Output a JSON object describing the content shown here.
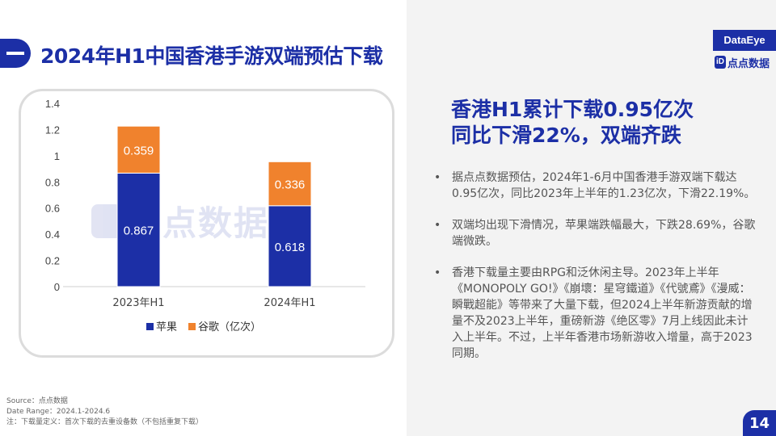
{
  "page": {
    "title": "2024年H1中国香港手游双端预估下载",
    "brand": "DataEye",
    "brand_logo_text": "点点数据",
    "page_number": "14"
  },
  "headline": {
    "line1": "香港H1累计下载0.95亿次",
    "line2": "同比下滑22%，双端齐跌"
  },
  "bullets": [
    "据点点数据预估，2024年1-6月中国香港手游双端下载达0.95亿次，同比2023年上半年的1.23亿次，下滑22.19%。",
    "双端均出现下滑情况，苹果端跌幅最大，下跌28.69%，谷歌端微跌。",
    "香港下载量主要由RPG和泛休闲主导。2023年上半年《MONOPOLY GO!》《崩壞：星穹鐵道》《代號鳶》《漫威：瞬戰超能》等带来了大量下载，但2024上半年新游贡献的增量不及2023上半年，重磅新游《绝区零》7月上线因此未计入上半年。不过，上半年香港市场新游收入增量，高于2023同期。"
  ],
  "footer": {
    "source": "Source：点点数据",
    "date_range": "Date Range：2024.1-2024.6",
    "note": "注：下载量定义：首次下载的去重设备数（不包括重复下载）"
  },
  "watermark": {
    "text": "点点数据"
  },
  "chart_data": {
    "type": "bar",
    "stacked": true,
    "categories": [
      "2023年H1",
      "2024年H1"
    ],
    "series": [
      {
        "name": "苹果",
        "values": [
          0.867,
          0.618
        ],
        "labels": [
          "0.867",
          "0.618"
        ],
        "color": "#1c2fa6"
      },
      {
        "name": "谷歌（亿次）",
        "values": [
          0.359,
          0.336
        ],
        "labels": [
          "0.359",
          "0.336"
        ],
        "color": "#f0822d"
      }
    ],
    "yticks": [
      "0",
      "0.2",
      "0.4",
      "0.6",
      "0.8",
      "1",
      "1.2",
      "1.4"
    ],
    "ylim": [
      0,
      1.4
    ],
    "grid": false,
    "legend_position": "bottom"
  }
}
